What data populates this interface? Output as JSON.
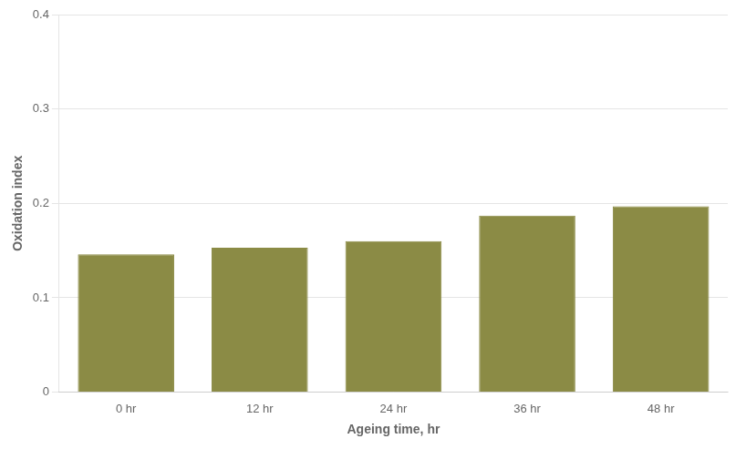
{
  "chart_data": {
    "type": "bar",
    "categories": [
      "0 hr",
      "12 hr",
      "24 hr",
      "36 hr",
      "48 hr"
    ],
    "values": [
      0.146,
      0.153,
      0.16,
      0.187,
      0.197
    ],
    "color": "#8B8B45",
    "xlabel": "Ageing time, hr",
    "ylabel": "Oxidation index",
    "ylim": [
      0,
      0.4
    ],
    "yticks": [
      0,
      0.1,
      0.2,
      0.3,
      0.4
    ],
    "grid": true
  }
}
